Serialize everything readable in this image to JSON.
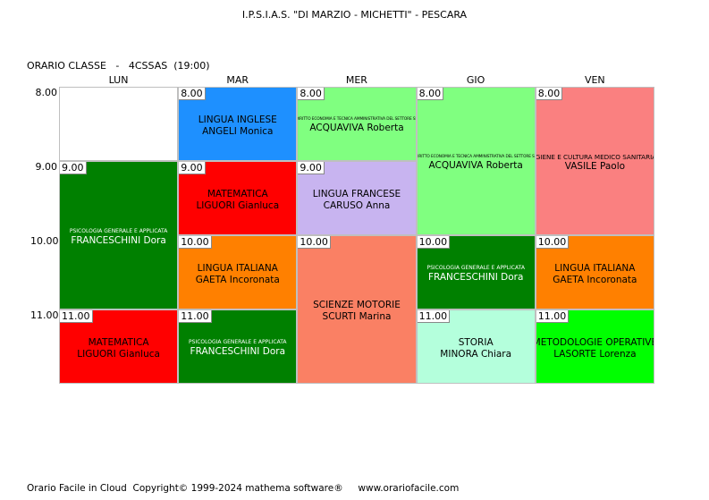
{
  "school_title": "I.P.S.I.A.S. \"DI MARZIO - MICHETTI\" - PESCARA",
  "class_label": "ORARIO CLASSE   -   4CSSAS  (19:00)",
  "days": [
    "LUN",
    "MAR",
    "MER",
    "GIO",
    "VEN"
  ],
  "hours": [
    "8.00",
    "9.00",
    "10.00",
    "11.00"
  ],
  "lessons": [
    {
      "day": 0,
      "start": 0,
      "span": 1,
      "empty": true
    },
    {
      "day": 0,
      "start": 1,
      "span": 2,
      "time": "9.00",
      "subject": "PSICOLOGIA GENERALE E APPLICATA",
      "teacher": "FRANCESCHINI Dora",
      "bg": "#008000",
      "fg": "#ffffff",
      "size": "small"
    },
    {
      "day": 0,
      "start": 3,
      "span": 1,
      "time": "11.00",
      "subject": "MATEMATICA",
      "teacher": "LIGUORI Gianluca",
      "bg": "#ff0000",
      "fg": "#000000",
      "size": "normal"
    },
    {
      "day": 1,
      "start": 0,
      "span": 1,
      "time": "8.00",
      "subject": "LINGUA INGLESE",
      "teacher": "ANGELI Monica",
      "bg": "#1e90ff",
      "fg": "#000000",
      "size": "normal"
    },
    {
      "day": 1,
      "start": 1,
      "span": 1,
      "time": "9.00",
      "subject": "MATEMATICA",
      "teacher": "LIGUORI Gianluca",
      "bg": "#ff0000",
      "fg": "#000000",
      "size": "normal"
    },
    {
      "day": 1,
      "start": 2,
      "span": 1,
      "time": "10.00",
      "subject": "LINGUA ITALIANA",
      "teacher": "GAETA Incoronata",
      "bg": "#ff8000",
      "fg": "#000000",
      "size": "normal"
    },
    {
      "day": 1,
      "start": 3,
      "span": 1,
      "time": "11.00",
      "subject": "PSICOLOGIA GENERALE E APPLICATA",
      "teacher": "FRANCESCHINI Dora",
      "bg": "#008000",
      "fg": "#ffffff",
      "size": "small"
    },
    {
      "day": 2,
      "start": 0,
      "span": 1,
      "time": "8.00",
      "subject": "DIRITTO ECONOMIA E TECNICA AMMINISTRATIVA DEL SETTORE SS",
      "teacher": "ACQUAVIVA Roberta",
      "bg": "#80ff80",
      "fg": "#000000",
      "size": "tiny"
    },
    {
      "day": 2,
      "start": 1,
      "span": 1,
      "time": "9.00",
      "subject": "LINGUA FRANCESE",
      "teacher": "CARUSO Anna",
      "bg": "#c8b4f0",
      "fg": "#000000",
      "size": "normal"
    },
    {
      "day": 2,
      "start": 2,
      "span": 2,
      "time": "10.00",
      "subject": "SCIENZE MOTORIE",
      "teacher": "SCURTI Marina",
      "bg": "#fa8064",
      "fg": "#000000",
      "size": "normal"
    },
    {
      "day": 3,
      "start": 0,
      "span": 2,
      "time": "8.00",
      "subject": "DIRITTO ECONOMIA E TECNICA AMMINISTRATIVA DEL SETTORE SS",
      "teacher": "ACQUAVIVA Roberta",
      "bg": "#80ff80",
      "fg": "#000000",
      "size": "tiny"
    },
    {
      "day": 3,
      "start": 2,
      "span": 1,
      "time": "10.00",
      "subject": "PSICOLOGIA GENERALE E APPLICATA",
      "teacher": "FRANCESCHINI Dora",
      "bg": "#008000",
      "fg": "#ffffff",
      "size": "small"
    },
    {
      "day": 3,
      "start": 3,
      "span": 1,
      "time": "11.00",
      "subject": "STORIA",
      "teacher": "MINORA Chiara",
      "bg": "#b4ffdc",
      "fg": "#000000",
      "size": "normal"
    },
    {
      "day": 4,
      "start": 0,
      "span": 2,
      "time": "8.00",
      "subject": "IGIENE E CULTURA MEDICO SANITARIA",
      "teacher": "VASILE Paolo",
      "bg": "#fa8080",
      "fg": "#000000",
      "size": "med"
    },
    {
      "day": 4,
      "start": 2,
      "span": 1,
      "time": "10.00",
      "subject": "LINGUA ITALIANA",
      "teacher": "GAETA Incoronata",
      "bg": "#ff8000",
      "fg": "#000000",
      "size": "normal"
    },
    {
      "day": 4,
      "start": 3,
      "span": 1,
      "time": "11.00",
      "subject": "METODOLOGIE OPERATIVE",
      "teacher": "LASORTE Lorenza",
      "bg": "#00ff00",
      "fg": "#000000",
      "size": "normal"
    }
  ],
  "footer": "Orario Facile in Cloud  Copyright© 1999-2024 mathema software®     www.orariofacile.com"
}
